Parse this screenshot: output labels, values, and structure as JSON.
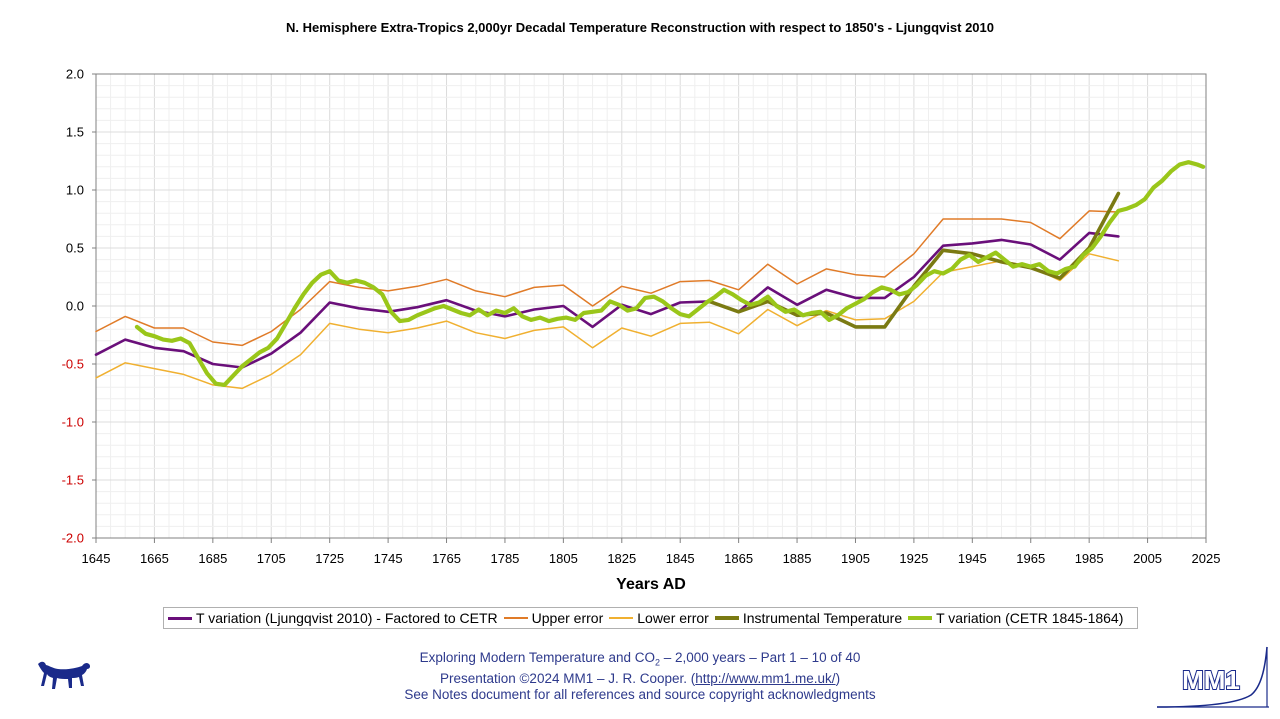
{
  "chart_data": {
    "type": "line",
    "title": "N. Hemisphere Extra-Tropics 2,000yr Decadal Temperature Reconstruction with respect to 1850's - Ljungqvist 2010",
    "xlabel": "Years AD",
    "ylabel": "",
    "xlim": [
      1645,
      2025
    ],
    "ylim": [
      -2.0,
      2.0
    ],
    "x_ticks": [
      "1645",
      "1665",
      "1685",
      "1705",
      "1725",
      "1745",
      "1765",
      "1785",
      "1805",
      "1825",
      "1845",
      "1865",
      "1885",
      "1905",
      "1925",
      "1945",
      "1965",
      "1985",
      "2005",
      "2025"
    ],
    "y_ticks": [
      "2.0",
      "1.5",
      "1.0",
      "0.5",
      "0.0",
      "-0.5",
      "-1.0",
      "-1.5",
      "-2.0"
    ],
    "grid": true,
    "legend_position": "bottom",
    "series": [
      {
        "name": "T variation (Ljungqvist 2010) - Factored to CETR",
        "color": "#6a0f7a",
        "x": [
          1645,
          1655,
          1665,
          1675,
          1685,
          1695,
          1705,
          1715,
          1725,
          1735,
          1745,
          1755,
          1765,
          1775,
          1785,
          1795,
          1805,
          1815,
          1825,
          1835,
          1845,
          1855,
          1865,
          1875,
          1885,
          1895,
          1905,
          1915,
          1925,
          1935,
          1945,
          1955,
          1965,
          1975,
          1985,
          1995
        ],
        "values": [
          -0.42,
          -0.29,
          -0.36,
          -0.39,
          -0.5,
          -0.53,
          -0.41,
          -0.23,
          0.03,
          -0.02,
          -0.05,
          -0.01,
          0.05,
          -0.04,
          -0.09,
          -0.03,
          0.0,
          -0.18,
          0.01,
          -0.07,
          0.03,
          0.04,
          -0.05,
          0.16,
          0.01,
          0.14,
          0.07,
          0.07,
          0.25,
          0.52,
          0.54,
          0.57,
          0.53,
          0.4,
          0.63,
          0.6
        ]
      },
      {
        "name": "Upper error",
        "color": "#e07b28",
        "x": [
          1645,
          1655,
          1665,
          1675,
          1685,
          1695,
          1705,
          1715,
          1725,
          1735,
          1745,
          1755,
          1765,
          1775,
          1785,
          1795,
          1805,
          1815,
          1825,
          1835,
          1845,
          1855,
          1865,
          1875,
          1885,
          1895,
          1905,
          1915,
          1925,
          1935,
          1945,
          1955,
          1965,
          1975,
          1985,
          1995
        ],
        "values": [
          -0.22,
          -0.09,
          -0.19,
          -0.19,
          -0.31,
          -0.34,
          -0.22,
          -0.03,
          0.21,
          0.16,
          0.13,
          0.17,
          0.23,
          0.13,
          0.08,
          0.16,
          0.18,
          0.0,
          0.17,
          0.11,
          0.21,
          0.22,
          0.14,
          0.36,
          0.19,
          0.32,
          0.27,
          0.25,
          0.45,
          0.75,
          0.75,
          0.75,
          0.72,
          0.58,
          0.82,
          0.81
        ]
      },
      {
        "name": "Lower error",
        "color": "#f0b030",
        "x": [
          1645,
          1655,
          1665,
          1675,
          1685,
          1695,
          1705,
          1715,
          1725,
          1735,
          1745,
          1755,
          1765,
          1775,
          1785,
          1795,
          1805,
          1815,
          1825,
          1835,
          1845,
          1855,
          1865,
          1875,
          1885,
          1895,
          1905,
          1915,
          1925,
          1935,
          1945,
          1955,
          1965,
          1975,
          1985,
          1995
        ],
        "values": [
          -0.62,
          -0.49,
          -0.54,
          -0.59,
          -0.68,
          -0.71,
          -0.59,
          -0.42,
          -0.15,
          -0.2,
          -0.23,
          -0.19,
          -0.13,
          -0.23,
          -0.28,
          -0.21,
          -0.18,
          -0.36,
          -0.19,
          -0.26,
          -0.15,
          -0.14,
          -0.24,
          -0.03,
          -0.17,
          -0.04,
          -0.12,
          -0.11,
          0.04,
          0.29,
          0.34,
          0.39,
          0.34,
          0.22,
          0.45,
          0.39
        ]
      },
      {
        "name": "Instrumental Temperature",
        "color": "#7a7a12",
        "x": [
          1855,
          1865,
          1875,
          1885,
          1895,
          1905,
          1915,
          1925,
          1935,
          1945,
          1955,
          1965,
          1975,
          1985,
          1995
        ],
        "values": [
          0.04,
          -0.05,
          0.04,
          -0.08,
          -0.06,
          -0.18,
          -0.18,
          0.17,
          0.48,
          0.45,
          0.38,
          0.33,
          0.24,
          0.5,
          0.97
        ]
      },
      {
        "name": "T variation (CETR 1845-1864)",
        "color": "#9ac61a",
        "x": [
          1659,
          1662,
          1665,
          1668,
          1671,
          1674,
          1677,
          1680,
          1683,
          1686,
          1689,
          1692,
          1695,
          1698,
          1701,
          1704,
          1707,
          1710,
          1713,
          1716,
          1719,
          1722,
          1725,
          1728,
          1731,
          1734,
          1737,
          1740,
          1743,
          1746,
          1749,
          1752,
          1755,
          1758,
          1761,
          1764,
          1767,
          1770,
          1773,
          1776,
          1779,
          1782,
          1785,
          1788,
          1791,
          1794,
          1797,
          1800,
          1803,
          1806,
          1809,
          1812,
          1815,
          1818,
          1821,
          1824,
          1827,
          1830,
          1833,
          1836,
          1839,
          1842,
          1845,
          1848,
          1851,
          1854,
          1857,
          1860,
          1863,
          1866,
          1869,
          1872,
          1875,
          1878,
          1881,
          1884,
          1887,
          1890,
          1893,
          1896,
          1899,
          1902,
          1905,
          1908,
          1911,
          1914,
          1917,
          1920,
          1923,
          1926,
          1929,
          1932,
          1935,
          1938,
          1941,
          1944,
          1947,
          1950,
          1953,
          1956,
          1959,
          1962,
          1965,
          1968,
          1971,
          1974,
          1977,
          1980,
          1983,
          1986,
          1989,
          1992,
          1995,
          1998,
          2001,
          2004,
          2007,
          2010,
          2013,
          2016,
          2019,
          2022,
          2024
        ],
        "values": [
          -0.18,
          -0.24,
          -0.26,
          -0.29,
          -0.3,
          -0.28,
          -0.32,
          -0.45,
          -0.58,
          -0.67,
          -0.68,
          -0.6,
          -0.52,
          -0.46,
          -0.4,
          -0.36,
          -0.28,
          -0.15,
          -0.02,
          0.1,
          0.2,
          0.27,
          0.3,
          0.22,
          0.2,
          0.22,
          0.2,
          0.16,
          0.1,
          -0.05,
          -0.13,
          -0.12,
          -0.08,
          -0.05,
          -0.02,
          0.0,
          -0.03,
          -0.06,
          -0.08,
          -0.03,
          -0.08,
          -0.04,
          -0.06,
          -0.02,
          -0.09,
          -0.12,
          -0.1,
          -0.13,
          -0.11,
          -0.1,
          -0.12,
          -0.06,
          -0.05,
          -0.04,
          0.04,
          0.01,
          -0.04,
          -0.02,
          0.07,
          0.08,
          0.04,
          -0.02,
          -0.07,
          -0.09,
          -0.03,
          0.03,
          0.08,
          0.14,
          0.1,
          0.05,
          0.01,
          0.03,
          0.08,
          0.0,
          -0.05,
          -0.03,
          -0.08,
          -0.06,
          -0.05,
          -0.12,
          -0.08,
          -0.02,
          0.02,
          0.06,
          0.12,
          0.16,
          0.14,
          0.1,
          0.12,
          0.18,
          0.26,
          0.3,
          0.28,
          0.32,
          0.4,
          0.44,
          0.38,
          0.42,
          0.46,
          0.4,
          0.34,
          0.36,
          0.34,
          0.36,
          0.3,
          0.28,
          0.32,
          0.34,
          0.44,
          0.5,
          0.6,
          0.72,
          0.82,
          0.84,
          0.87,
          0.92,
          1.02,
          1.08,
          1.16,
          1.22,
          1.24,
          1.22,
          1.2
        ]
      }
    ]
  },
  "footer": {
    "line1_prefix": "Exploring Modern Temperature and CO",
    "line1_sub": "2",
    "line1_suffix": " – 2,000 years – Part 1 – 10 of 40",
    "line2_prefix": "Presentation ©2024 MM1 – J. R. Cooper. (",
    "line2_link": "http://www.mm1.me.uk/",
    "line2_suffix": ")",
    "line3": "See Notes document for all references and source copyright acknowledgments"
  },
  "logo": {
    "text": "MM1"
  },
  "colors": {
    "axis_positive": "#000000",
    "axis_negative": "#cc0000",
    "footer_text": "#2e3a8c"
  }
}
